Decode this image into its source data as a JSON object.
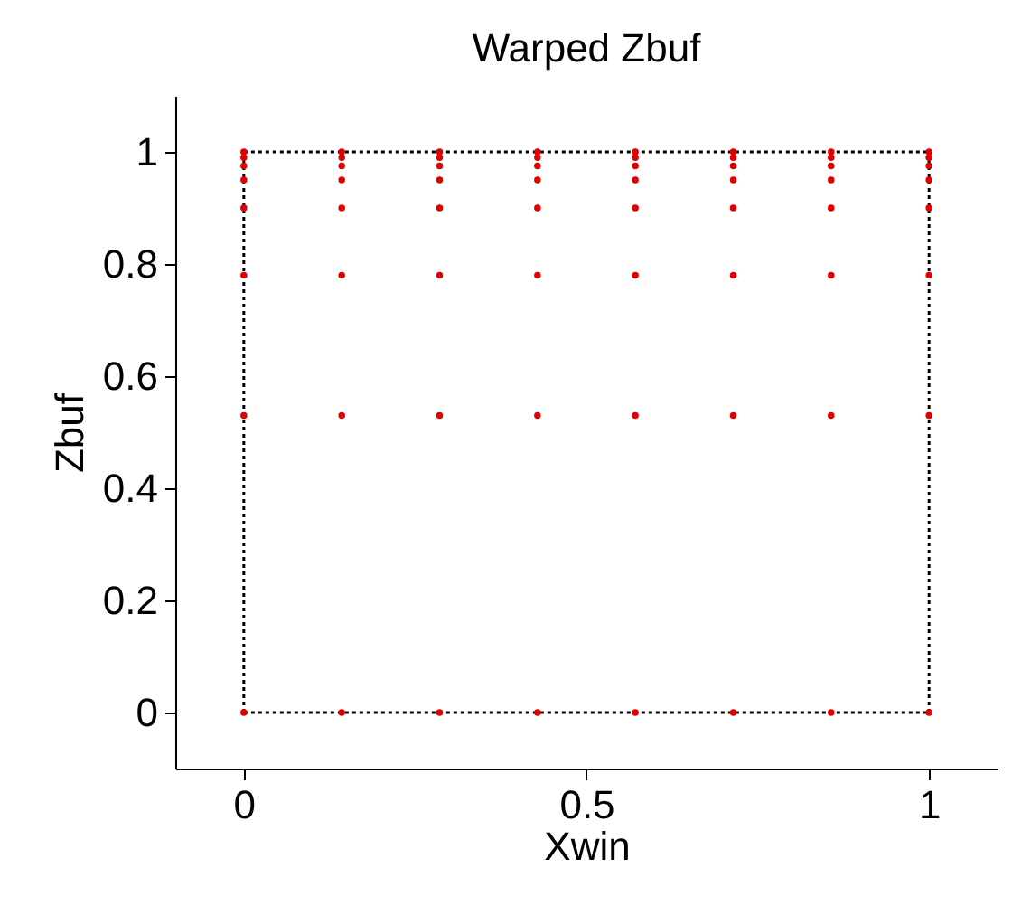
{
  "chart_data": {
    "type": "scatter",
    "title": "Warped Zbuf",
    "xlabel": "Xwin",
    "ylabel": "Zbuf",
    "xlim": [
      -0.1,
      1.1
    ],
    "ylim": [
      -0.1,
      1.1
    ],
    "xticks": [
      0,
      0.5,
      1
    ],
    "yticks": [
      0,
      0.2,
      0.4,
      0.6,
      0.8,
      1
    ],
    "grid": false,
    "series": [
      {
        "type": "line",
        "color": "#000000",
        "line_style": "dotted",
        "marker": "none",
        "x": [
          0,
          1
        ],
        "values": [
          0,
          0
        ]
      },
      {
        "type": "line",
        "color": "#000000",
        "line_style": "dotted",
        "marker": "none",
        "x": [
          0,
          1
        ],
        "values": [
          1,
          1
        ]
      },
      {
        "type": "line",
        "color": "#000000",
        "line_style": "dotted",
        "marker": "none",
        "x": [
          0,
          0
        ],
        "values": [
          0,
          1
        ]
      },
      {
        "type": "line",
        "color": "#000000",
        "line_style": "dotted",
        "marker": "none",
        "x": [
          1,
          1
        ],
        "values": [
          0,
          1
        ]
      },
      {
        "color": "#e00000",
        "marker": "circle",
        "x": [
          0,
          0,
          0,
          0,
          0,
          0,
          0,
          0,
          0.1429,
          0.1429,
          0.1429,
          0.1429,
          0.1429,
          0.1429,
          0.1429,
          0.1429,
          0.2857,
          0.2857,
          0.2857,
          0.2857,
          0.2857,
          0.2857,
          0.2857,
          0.2857,
          0.4286,
          0.4286,
          0.4286,
          0.4286,
          0.4286,
          0.4286,
          0.4286,
          0.4286,
          0.5714,
          0.5714,
          0.5714,
          0.5714,
          0.5714,
          0.5714,
          0.5714,
          0.5714,
          0.7143,
          0.7143,
          0.7143,
          0.7143,
          0.7143,
          0.7143,
          0.7143,
          0.7143,
          0.8571,
          0.8571,
          0.8571,
          0.8571,
          0.8571,
          0.8571,
          0.8571,
          0.8571,
          1,
          1,
          1,
          1,
          1,
          1,
          1,
          1
        ],
        "values": [
          0,
          0.53,
          0.78,
          0.9,
          0.95,
          0.975,
          0.99,
          1,
          0,
          0.53,
          0.78,
          0.9,
          0.95,
          0.975,
          0.99,
          1,
          0,
          0.53,
          0.78,
          0.9,
          0.95,
          0.975,
          0.99,
          1,
          0,
          0.53,
          0.78,
          0.9,
          0.95,
          0.975,
          0.99,
          1,
          0,
          0.53,
          0.78,
          0.9,
          0.95,
          0.975,
          0.99,
          1,
          0,
          0.53,
          0.78,
          0.9,
          0.95,
          0.975,
          0.99,
          1,
          0,
          0.53,
          0.78,
          0.9,
          0.95,
          0.975,
          0.99,
          1,
          0,
          0.53,
          0.78,
          0.9,
          0.95,
          0.975,
          0.99,
          1
        ]
      }
    ]
  }
}
